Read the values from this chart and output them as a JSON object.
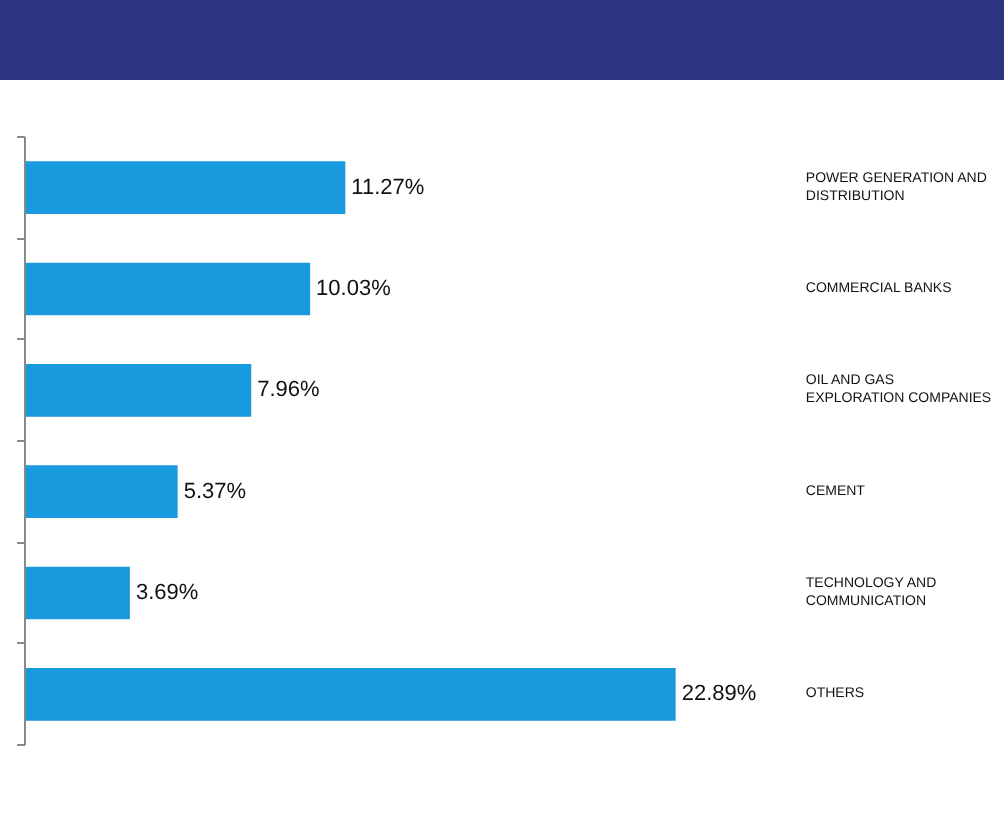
{
  "chart_data": {
    "type": "bar",
    "orientation": "horizontal",
    "categories": [
      "POWER GENERATION AND DISTRIBUTION",
      "COMMERCIAL BANKS",
      "OIL AND GAS EXPLORATION COMPANIES",
      "CEMENT",
      "TECHNOLOGY AND COMMUNICATION",
      "OTHERS"
    ],
    "values": [
      11.27,
      10.03,
      7.96,
      5.37,
      3.69,
      22.89
    ],
    "value_labels": [
      "11.27%",
      "10.03%",
      "7.96%",
      "5.37%",
      "3.69%",
      "22.89%"
    ],
    "color": "#1a9ade",
    "grid": false,
    "tick_labels": false
  }
}
